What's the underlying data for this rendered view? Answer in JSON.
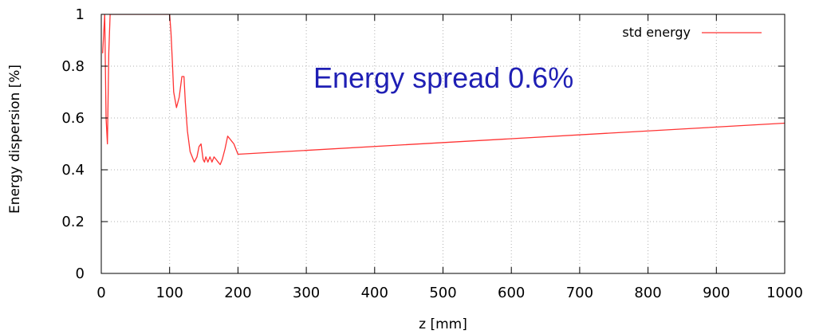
{
  "chart_data": {
    "type": "line",
    "title": "",
    "xlabel": "z [mm]",
    "ylabel": "Energy dispersion [%]",
    "xlim": [
      0,
      1000
    ],
    "ylim": [
      0,
      1
    ],
    "x_ticks": [
      "0",
      "100",
      "200",
      "300",
      "400",
      "500",
      "600",
      "700",
      "800",
      "900",
      "1000"
    ],
    "y_ticks": [
      "0",
      "0.2",
      "0.4",
      "0.6",
      "0.8",
      "1"
    ],
    "grid": true,
    "legend_position": "top-right",
    "annotation": "Energy spread 0.6%",
    "annotation_color": "#1f1fb4",
    "series": [
      {
        "name": "std energy",
        "color": "#ff3333",
        "x": [
          2,
          5,
          7,
          9,
          11,
          13,
          100,
          102,
          104,
          106,
          110,
          114,
          118,
          121,
          123,
          126,
          130,
          133,
          136,
          140,
          143,
          146,
          149,
          151,
          153,
          156,
          159,
          162,
          165,
          168,
          171,
          174,
          177,
          181,
          185,
          188,
          191,
          194,
          197,
          200,
          1000
        ],
        "y": [
          0.85,
          1.0,
          0.6,
          0.5,
          0.85,
          1.0,
          1.0,
          0.93,
          0.82,
          0.7,
          0.64,
          0.68,
          0.76,
          0.76,
          0.66,
          0.55,
          0.47,
          0.45,
          0.43,
          0.45,
          0.49,
          0.5,
          0.44,
          0.43,
          0.45,
          0.43,
          0.45,
          0.43,
          0.45,
          0.44,
          0.43,
          0.42,
          0.44,
          0.48,
          0.53,
          0.52,
          0.51,
          0.5,
          0.48,
          0.46,
          0.58
        ]
      }
    ]
  }
}
